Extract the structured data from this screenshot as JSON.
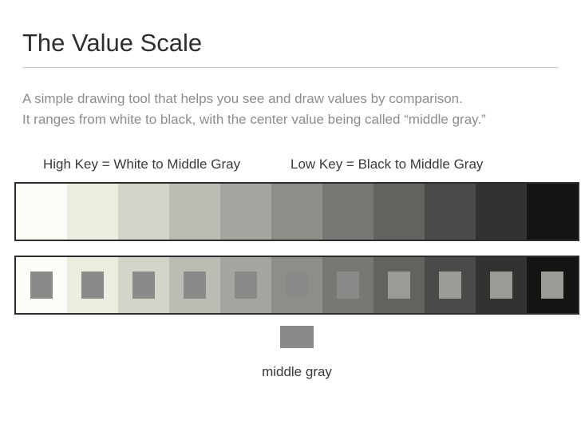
{
  "title": "The Value Scale",
  "description_line1": "A simple drawing tool that helps you see and draw values by comparison.",
  "description_line2": "It ranges from white to black, with the center value being called “middle gray.”",
  "labels": {
    "high_key": "High Key = White to Middle Gray",
    "low_key": "Low Key = Black to Middle Gray",
    "middle_gray": "middle gray"
  },
  "value_scale": {
    "type": "infographic",
    "background_color": "#ffffff",
    "border_color": "#2d2d2d",
    "border_width": 2,
    "swatch_size": {
      "w": 28,
      "h": 34
    },
    "indicator_size": {
      "w": 42,
      "h": 28
    },
    "title_fontsize": 31,
    "body_fontsize": 17,
    "text_color": "#3a3a3a",
    "desc_color": "#8d8d8d",
    "hr_color": "#c9c9c9",
    "steps": [
      {
        "bg": "#fdfdf8",
        "swatch": "#8a8a88"
      },
      {
        "bg": "#ededdf",
        "swatch": "#8a8a88"
      },
      {
        "bg": "#d4d4cb",
        "swatch": "#8a8a88"
      },
      {
        "bg": "#bcbcb4",
        "swatch": "#8a8a88"
      },
      {
        "bg": "#a6a6a0",
        "swatch": "#8a8a88"
      },
      {
        "bg": "#8e8e89",
        "swatch": "#8a8a88"
      },
      {
        "bg": "#777773",
        "swatch": "#8a8a88"
      },
      {
        "bg": "#62625f",
        "swatch": "#9a9a97"
      },
      {
        "bg": "#4a4a48",
        "swatch": "#9a9a97"
      },
      {
        "bg": "#323231",
        "swatch": "#9a9a97"
      },
      {
        "bg": "#141413",
        "swatch": "#9a9a97"
      }
    ],
    "indicator_color": "#8a8a88"
  }
}
